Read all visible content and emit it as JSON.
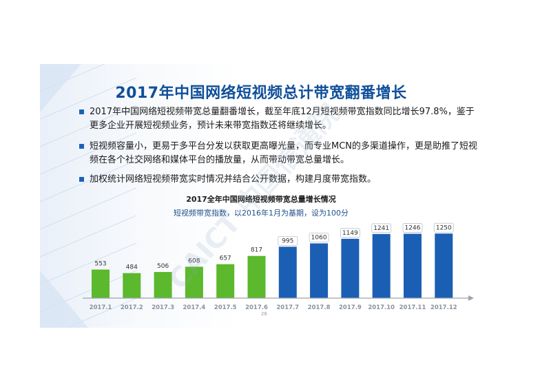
{
  "slide": {
    "title": "2017年中国网络短视频总计带宽翻番增长",
    "bullets": [
      "2017年中国网络短视频带宽总量翻番增长，截至年底12月短视频带宽指数同比增长97.8%，鉴于更多企业开展短视频业务，预计未来带宽指数还将继续增长。",
      "短视频容量小，更易于多平台分发以获取更高曝光量，而专业MCN的多渠道操作，更是助推了短视频在各个社交网络和媒体平台的播放量，从而带动带宽总量增长。",
      "加权统计网络短视频带宽实时情况并结合公开数据，构建月度带宽指数。"
    ],
    "page_number": "26",
    "watermark": "CAICT 中国信通院"
  },
  "colors": {
    "title": "#0f4f9a",
    "green": "#5cb82c",
    "blue": "#1b5fb4",
    "bullet": "#1b62b7"
  },
  "chart_data": {
    "type": "bar",
    "title": "2017全年中国网络短视频带宽总量增长情况",
    "subtitle": "短视频带宽指数，以2016年1月为基期，设为100分",
    "categories": [
      "2017.1",
      "2017.2",
      "2017.3",
      "2017.4",
      "2017.5",
      "2017.6",
      "2017.7",
      "2017.8",
      "2017.9",
      "2017.10",
      "2017.11",
      "2017.12"
    ],
    "values": [
      553,
      484,
      506,
      608,
      657,
      817,
      995,
      1060,
      1149,
      1241,
      1246,
      1250
    ],
    "bar_colors": [
      "#5cb82c",
      "#5cb82c",
      "#5cb82c",
      "#5cb82c",
      "#5cb82c",
      "#5cb82c",
      "#1b5fb4",
      "#1b5fb4",
      "#1b5fb4",
      "#1b5fb4",
      "#1b5fb4",
      "#1b5fb4"
    ],
    "label_style": [
      "plain",
      "plain",
      "plain",
      "plain",
      "plain",
      "plain",
      "boxed",
      "boxed",
      "boxed",
      "boxed",
      "boxed",
      "boxed"
    ],
    "ylim": [
      0,
      1400
    ],
    "grid": false,
    "legend": "none"
  }
}
